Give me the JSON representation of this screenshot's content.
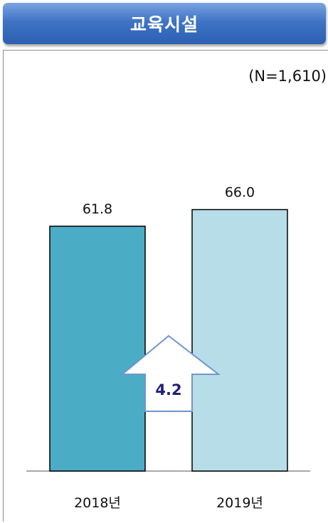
{
  "header": {
    "title": "교육시설"
  },
  "sample_note": "(N=1,610)",
  "chart_data": {
    "type": "bar",
    "title": "교육시설",
    "categories": [
      "2018년",
      "2019년"
    ],
    "values": [
      61.8,
      66.0
    ],
    "data_labels": [
      "61.8",
      "66.0"
    ],
    "bar_colors": [
      "#4bacc6",
      "#b7dde8"
    ],
    "ylim": [
      0,
      74
    ],
    "grid": false,
    "legend": "none",
    "annotation": {
      "type": "increase-arrow",
      "label": "4.2",
      "color": "#1f1f7a"
    }
  }
}
